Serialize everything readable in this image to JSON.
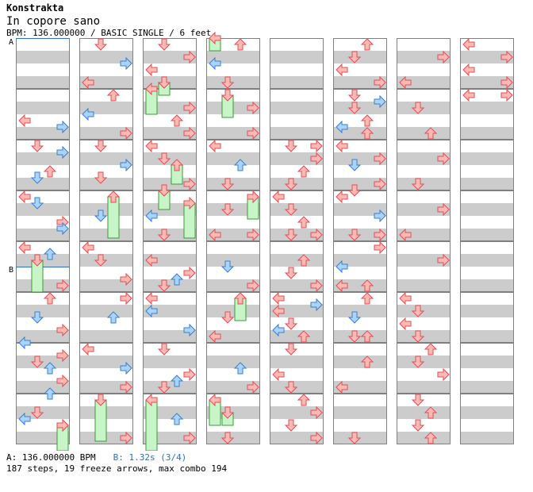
{
  "header": {
    "artist": "Konstrakta",
    "title": "In copore sano",
    "info": "BPM: 136.000000 / BASIC SINGLE / 6 feet"
  },
  "markers": {
    "a": "A",
    "b": "B"
  },
  "footer": {
    "bpm_label": "A: 136.000000 BPM",
    "stop_label": "B: 1.32s (3/4)",
    "stats": "187 steps, 19 freeze arrows, max combo 194"
  },
  "colors": {
    "stripe_light": "#ffffff",
    "stripe_dark": "#cccccc",
    "border": "#808080",
    "red_arrow": "#ffb8b8",
    "red_arrow_stroke": "#e05050",
    "blue_arrow": "#a8d4ff",
    "blue_arrow_stroke": "#3a7fd0",
    "freeze_fill": "#c8f5c8",
    "freeze_stroke": "#3a9a3a",
    "bpm_line": "#2e6fc7"
  }
}
